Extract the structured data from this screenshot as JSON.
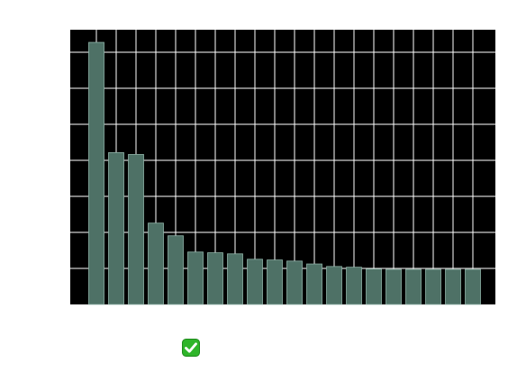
{
  "chart_data": {
    "type": "bar",
    "title": "",
    "xlabel": "",
    "ylabel": "",
    "values": [
      7.25,
      4.2,
      4.15,
      2.25,
      1.9,
      1.45,
      1.43,
      1.4,
      1.25,
      1.23,
      1.2,
      1.12,
      1.05,
      1.03,
      0.98,
      0.97,
      0.97,
      0.97,
      0.97,
      0.97
    ],
    "ylim": [
      0,
      7.6
    ],
    "grid": true,
    "colors": {
      "background": "#000000",
      "bar_fill": "#4e7166",
      "bar_edge": "#8fb3a8",
      "grid": "#ffffff"
    }
  },
  "badge": {
    "icon": "check-mark-button-icon",
    "color": "#2fb52a"
  }
}
